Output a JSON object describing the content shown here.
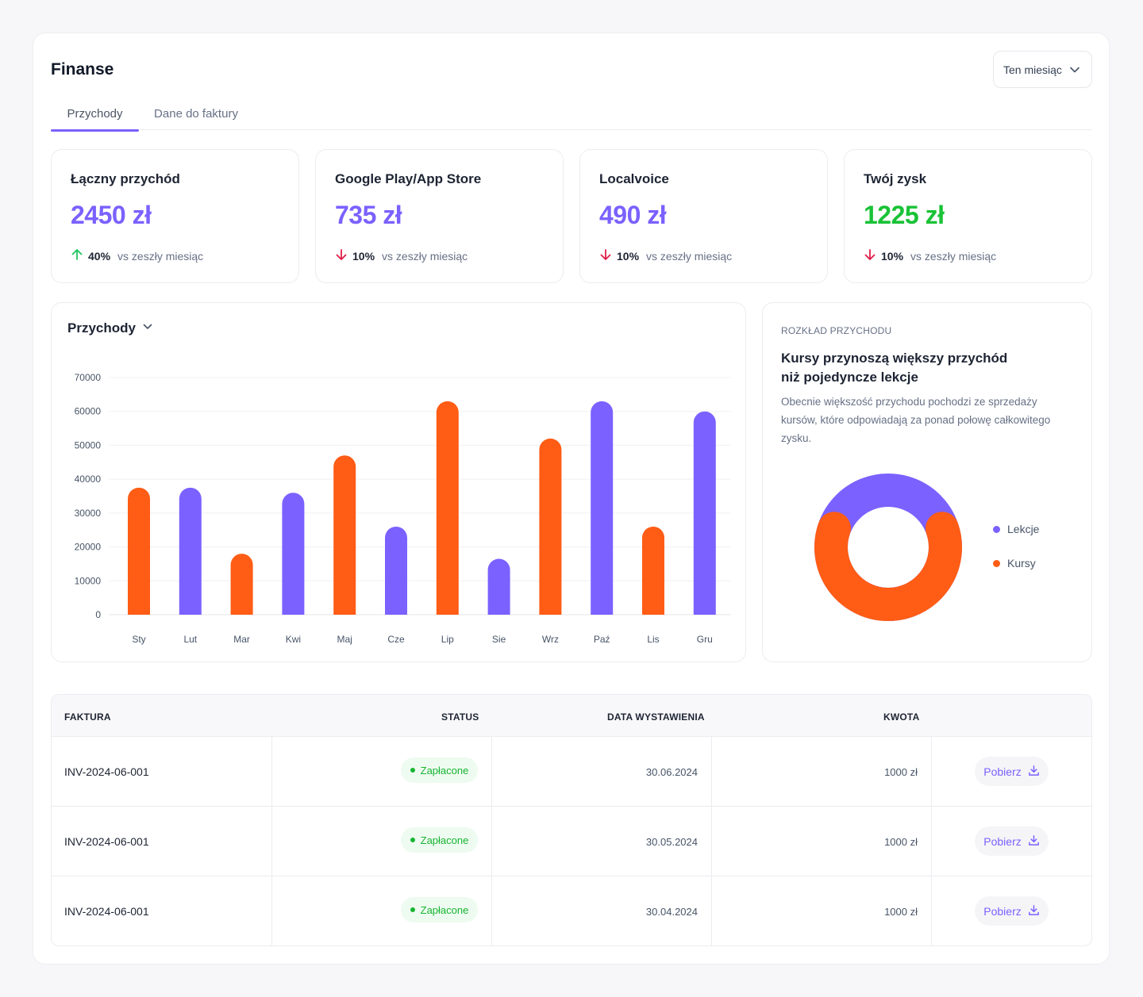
{
  "page": {
    "title": "Finanse",
    "period_select": "Ten miesiąc"
  },
  "tabs": [
    {
      "label": "Przychody",
      "active": true
    },
    {
      "label": "Dane do faktury",
      "active": false
    }
  ],
  "stats": [
    {
      "label": "Łączny przychód",
      "value": "2450 zł",
      "trend": "up",
      "pct": "40%",
      "vs": "vs zeszły miesiąc"
    },
    {
      "label": "Google Play/App Store",
      "value": "735 zł",
      "trend": "down",
      "pct": "10%",
      "vs": "vs zeszły miesiąc"
    },
    {
      "label": "Localvoice",
      "value": "490 zł",
      "trend": "down",
      "pct": "10%",
      "vs": "vs zeszły miesiąc"
    },
    {
      "label": "Twój zysk",
      "value": "1225 zł",
      "trend": "down",
      "pct": "10%",
      "vs": "vs zeszły miesiąc"
    }
  ],
  "colors": {
    "accent": "#7b61ff",
    "orange": "#ff5c15",
    "green": "#19c236",
    "up": "#22c55e",
    "down": "#e11d48"
  },
  "revenue_chart": {
    "title": "Przychody"
  },
  "distribution": {
    "kicker": "ROZKŁAD PRZYCHODU",
    "heading": "Kursy przynoszą większy przychód niż pojedyncze lekcje",
    "description": "Obecnie większość przychodu pochodzi ze sprzedaży kursów, które odpowiadają za ponad połowę całkowitego zysku.",
    "legend": [
      {
        "label": "Lekcje",
        "color": "#7b61ff"
      },
      {
        "label": "Kursy",
        "color": "#ff5c15"
      }
    ]
  },
  "chart_data": [
    {
      "type": "bar",
      "title": "Przychody",
      "categories": [
        "Sty",
        "Lut",
        "Mar",
        "Kwi",
        "Maj",
        "Cze",
        "Lip",
        "Sie",
        "Wrz",
        "Paź",
        "Lis",
        "Gru"
      ],
      "values": [
        37500,
        37500,
        18000,
        36000,
        47000,
        26000,
        63000,
        16500,
        52000,
        63000,
        26000,
        60000
      ],
      "bar_colors": [
        "#ff5c15",
        "#7b61ff",
        "#ff5c15",
        "#7b61ff",
        "#ff5c15",
        "#7b61ff",
        "#ff5c15",
        "#7b61ff",
        "#ff5c15",
        "#7b61ff",
        "#ff5c15",
        "#7b61ff"
      ],
      "yticks": [
        0,
        10000,
        20000,
        30000,
        40000,
        50000,
        60000,
        70000
      ],
      "ylim": [
        0,
        70000
      ],
      "xlabel": "",
      "ylabel": "",
      "grid": true
    },
    {
      "type": "pie",
      "title": "Rozkład przychodu",
      "labels": [
        "Lekcje",
        "Kursy"
      ],
      "values": [
        30,
        70
      ],
      "colors": [
        "#7b61ff",
        "#ff5c15"
      ]
    }
  ],
  "table": {
    "headers": {
      "invoice": "FAKTURA",
      "status": "STATUS",
      "date": "DATA WYSTAWIENIA",
      "amount": "KWOTA"
    },
    "rows": [
      {
        "id": "INV-2024-06-001",
        "status": "Zapłacone",
        "date": "30.06.2024",
        "amount": "1000 zł",
        "action": "Pobierz"
      },
      {
        "id": "INV-2024-06-001",
        "status": "Zapłacone",
        "date": "30.05.2024",
        "amount": "1000 zł",
        "action": "Pobierz"
      },
      {
        "id": "INV-2024-06-001",
        "status": "Zapłacone",
        "date": "30.04.2024",
        "amount": "1000 zł",
        "action": "Pobierz"
      }
    ]
  }
}
